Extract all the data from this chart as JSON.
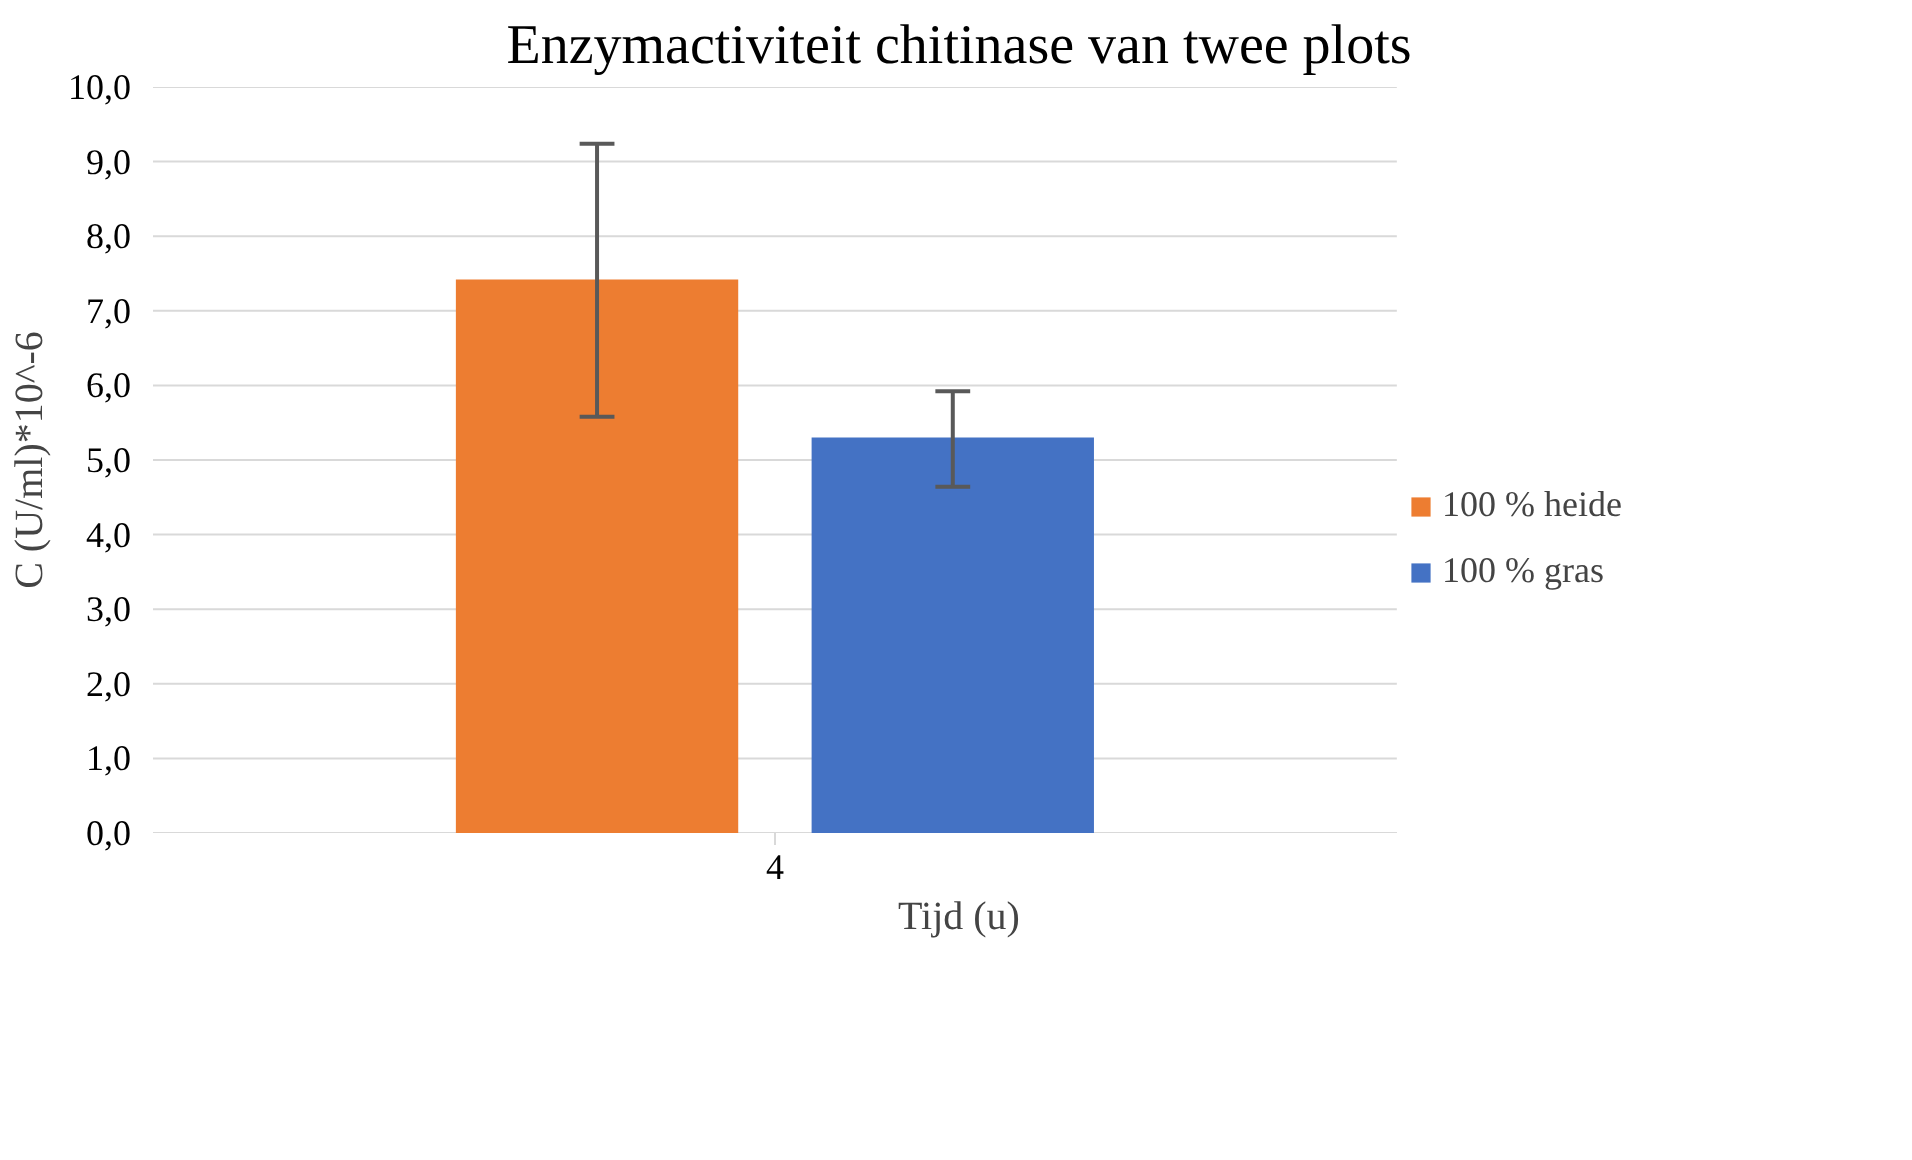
{
  "chart_data": {
    "type": "bar",
    "title": "Enzymactiviteit chitinase van twee plots",
    "xlabel": "Tijd (u)",
    "ylabel": "C (U/ml)*10^-6",
    "categories": [
      "4"
    ],
    "series": [
      {
        "name": "100 % heide",
        "color": "#ed7d31",
        "values": [
          7.42
        ],
        "errors": [
          [
            5.58,
            9.24
          ]
        ]
      },
      {
        "name": "100 % gras",
        "color": "#4472c4",
        "values": [
          5.3
        ],
        "errors": [
          [
            4.64,
            5.92
          ]
        ]
      }
    ],
    "ylim": [
      0,
      10
    ],
    "yticks": [
      {
        "value": 0,
        "label": "0,0"
      },
      {
        "value": 1,
        "label": "1,0"
      },
      {
        "value": 2,
        "label": "2,0"
      },
      {
        "value": 3,
        "label": "3,0"
      },
      {
        "value": 4,
        "label": "4,0"
      },
      {
        "value": 5,
        "label": "5,0"
      },
      {
        "value": 6,
        "label": "6,0"
      },
      {
        "value": 7,
        "label": "7,0"
      },
      {
        "value": 8,
        "label": "8,0"
      },
      {
        "value": 9,
        "label": "9,0"
      },
      {
        "value": 10,
        "label": "10,0"
      }
    ],
    "grid": "y",
    "legend": "right"
  }
}
